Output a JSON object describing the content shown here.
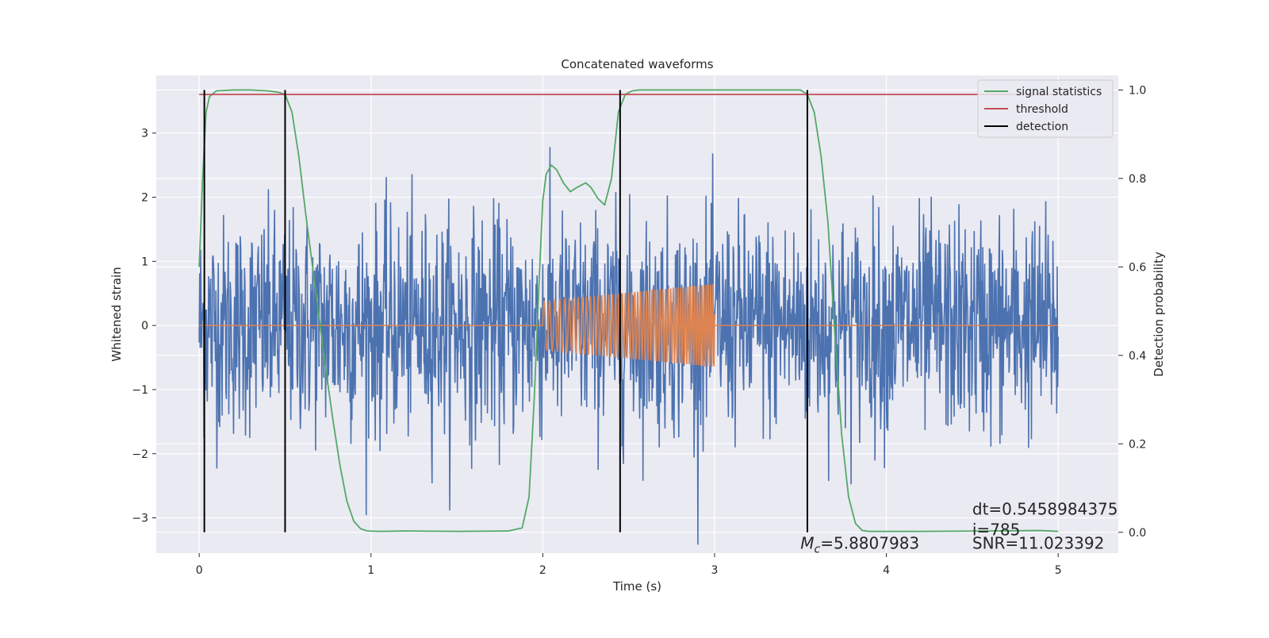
{
  "chart_data": {
    "type": "line",
    "title": "Concatenated waveforms",
    "xlabel": "Time (s)",
    "ylabel": "Whitened strain",
    "y2label": "Detection probability",
    "xlim": [
      -0.25,
      5.35
    ],
    "ylim": [
      -3.55,
      3.9
    ],
    "y2lim": [
      -0.047,
      1.033
    ],
    "xticks": [
      0,
      1,
      2,
      3,
      4,
      5
    ],
    "yticks": [
      -3,
      -2,
      -1,
      0,
      1,
      2,
      3
    ],
    "y2ticks": [
      0.0,
      0.2,
      0.4,
      0.6,
      0.8,
      1.0
    ],
    "xtick_labels": [
      "0",
      "1",
      "2",
      "3",
      "4",
      "5"
    ],
    "ytick_labels": [
      "−3",
      "−2",
      "−1",
      "0",
      "1",
      "2",
      "3"
    ],
    "y2tick_labels": [
      "0.0",
      "0.2",
      "0.4",
      "0.6",
      "0.8",
      "1.0"
    ],
    "grid": true,
    "legend_position": "top-right",
    "colors": {
      "background": "#EAEAF2",
      "strain": "#4C72B0",
      "injected": "#DD8452",
      "signal_statistics": "#55A868",
      "threshold": "#C44E52",
      "detection": "#000000"
    },
    "noise": {
      "x_range": [
        0,
        5
      ],
      "std": 0.85,
      "peak_abs": 3.6
    },
    "injected_waveform": {
      "x_start": 2.0,
      "x_end": 3.0,
      "amp_start": 0.38,
      "amp_end": 0.65,
      "freq_start": 30,
      "freq_end": 80
    },
    "series": [
      {
        "name": "signal statistics",
        "axis": "right",
        "x": [
          0,
          0.02,
          0.04,
          0.06,
          0.1,
          0.2,
          0.3,
          0.4,
          0.46,
          0.5,
          0.54,
          0.58,
          0.62,
          0.66,
          0.7,
          0.74,
          0.78,
          0.82,
          0.86,
          0.9,
          0.94,
          0.98,
          1.05,
          1.2,
          1.5,
          1.8,
          1.88,
          1.92,
          1.95,
          1.98,
          2.0,
          2.02,
          2.05,
          2.08,
          2.12,
          2.16,
          2.2,
          2.25,
          2.28,
          2.32,
          2.36,
          2.4,
          2.44,
          2.48,
          2.52,
          2.56,
          2.7,
          3.0,
          3.3,
          3.5,
          3.54,
          3.58,
          3.62,
          3.66,
          3.7,
          3.74,
          3.78,
          3.82,
          3.86,
          3.9,
          4.2,
          4.6,
          4.9,
          5.0
        ],
        "y": [
          0.6,
          0.8,
          0.95,
          0.985,
          0.998,
          1.0,
          1.0,
          0.998,
          0.995,
          0.99,
          0.95,
          0.85,
          0.72,
          0.6,
          0.48,
          0.36,
          0.25,
          0.15,
          0.07,
          0.025,
          0.008,
          0.003,
          0.002,
          0.003,
          0.002,
          0.003,
          0.01,
          0.08,
          0.3,
          0.58,
          0.75,
          0.81,
          0.83,
          0.82,
          0.79,
          0.77,
          0.78,
          0.79,
          0.78,
          0.755,
          0.74,
          0.8,
          0.95,
          0.99,
          0.998,
          1.0,
          1.0,
          1.0,
          1.0,
          1.0,
          0.99,
          0.95,
          0.85,
          0.7,
          0.45,
          0.22,
          0.08,
          0.02,
          0.004,
          0.002,
          0.002,
          0.003,
          0.004,
          0.002
        ]
      },
      {
        "name": "threshold",
        "axis": "right",
        "x": [
          0,
          5
        ],
        "y": [
          0.99,
          0.99
        ]
      },
      {
        "name": "detection",
        "axis": "right",
        "type": "vlines",
        "x": [
          0.03,
          0.5,
          2.45,
          3.54
        ],
        "y_range": [
          0.0,
          1.0
        ]
      }
    ],
    "annotations": [
      {
        "text": "dt=0.5458984375",
        "x": 4.5,
        "y": -2.95
      },
      {
        "text": " i=785",
        "x": 4.5,
        "y": -3.27
      },
      {
        "text": "SNR=11.023392",
        "x": 4.5,
        "y": -3.48
      },
      {
        "text": "=5.8807983",
        "prefix": "M",
        "subscript": "c",
        "x": 3.5,
        "y": -3.48
      }
    ]
  }
}
